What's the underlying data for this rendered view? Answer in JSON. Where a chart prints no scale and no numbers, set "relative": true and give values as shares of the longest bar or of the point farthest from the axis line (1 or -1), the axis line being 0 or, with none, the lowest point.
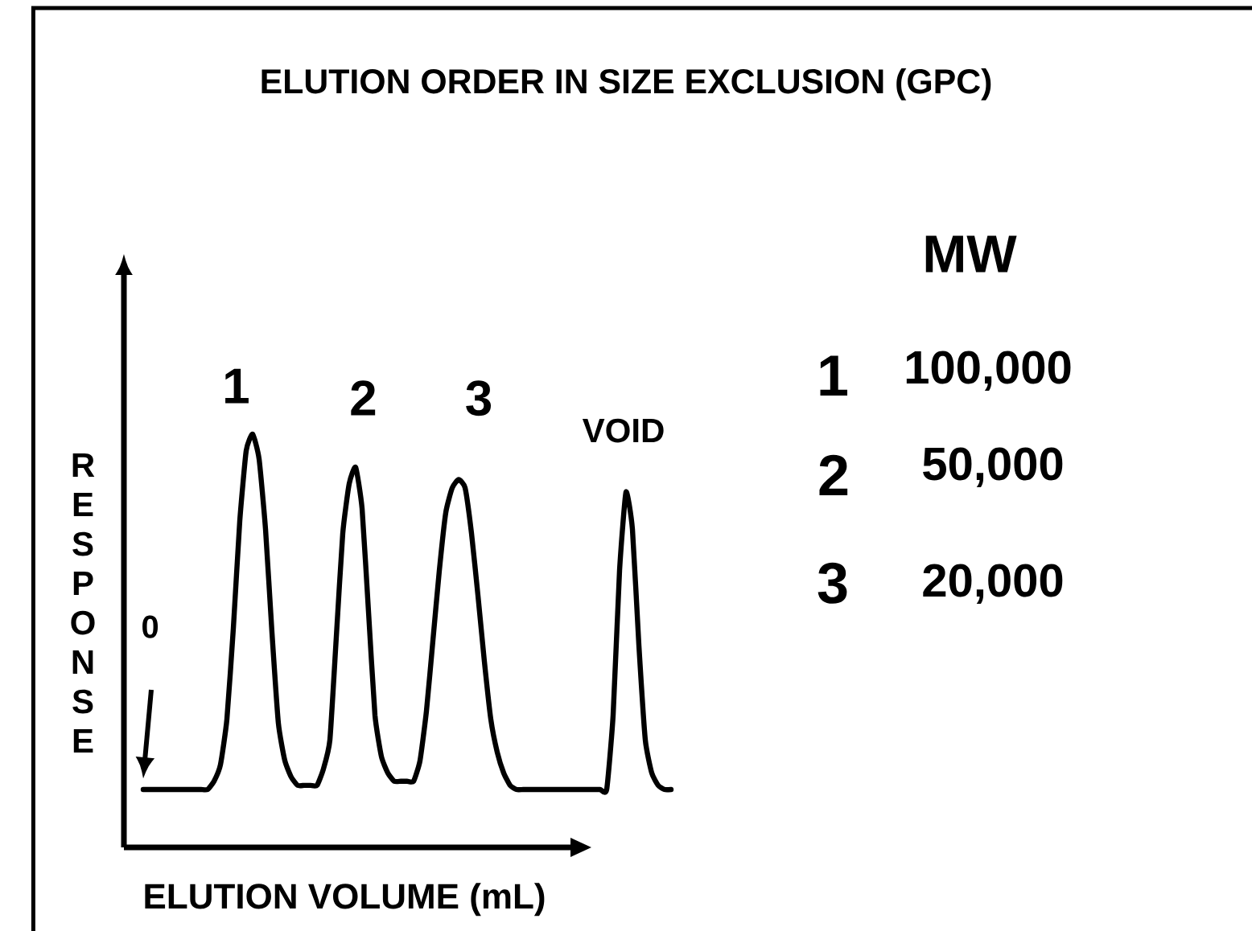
{
  "chart_data": {
    "type": "line",
    "title": "ELUTION ORDER IN SIZE EXCLUSION (GPC)",
    "xlabel": "ELUTION VOLUME (mL)",
    "ylabel": "RESPONSE",
    "relative": true,
    "color": "#000000",
    "line_style": "solid",
    "categories": [
      null,
      null,
      null,
      null,
      null,
      null,
      null,
      null,
      null,
      null,
      null,
      null,
      null,
      null,
      null,
      null,
      null,
      null,
      null,
      null,
      null,
      null,
      null,
      null,
      null,
      null,
      null,
      null,
      null,
      null,
      null,
      null,
      null,
      null,
      null,
      null,
      null,
      null,
      null,
      null,
      null,
      null,
      null,
      null,
      null,
      null,
      null,
      null,
      null,
      null,
      null,
      null,
      null,
      null,
      null,
      null,
      null,
      null,
      null,
      null,
      null,
      null,
      null,
      null,
      null,
      null,
      null,
      null,
      null,
      null,
      null,
      null,
      null,
      null,
      null,
      null,
      null,
      null,
      null,
      null,
      null,
      null,
      null
    ],
    "values": [
      0.14,
      0.14,
      0.14,
      0.14,
      0.14,
      0.14,
      0.14,
      0.14,
      0.14,
      0.14,
      0.14,
      0.16,
      0.2,
      0.31,
      0.53,
      0.79,
      0.96,
      1.0,
      0.94,
      0.77,
      0.52,
      0.3,
      0.21,
      0.17,
      0.15,
      0.15,
      0.15,
      0.15,
      0.19,
      0.26,
      0.51,
      0.76,
      0.88,
      0.92,
      0.82,
      0.57,
      0.32,
      0.22,
      0.18,
      0.16,
      0.16,
      0.16,
      0.16,
      0.21,
      0.33,
      0.5,
      0.67,
      0.81,
      0.87,
      0.89,
      0.87,
      0.76,
      0.61,
      0.45,
      0.31,
      0.23,
      0.18,
      0.15,
      0.14,
      0.14,
      0.14,
      0.14,
      0.14,
      0.14,
      0.14,
      0.14,
      0.14,
      0.14,
      0.14,
      0.14,
      0.14,
      0.14,
      0.14,
      0.32,
      0.67,
      0.86,
      0.77,
      0.49,
      0.26,
      0.18,
      0.15,
      0.14,
      0.14
    ],
    "annotations": [
      "1",
      "2",
      "3",
      "VOID",
      "0",
      "MW",
      "1",
      "100,000",
      "2",
      "50,000",
      "3",
      "20,000"
    ]
  }
}
